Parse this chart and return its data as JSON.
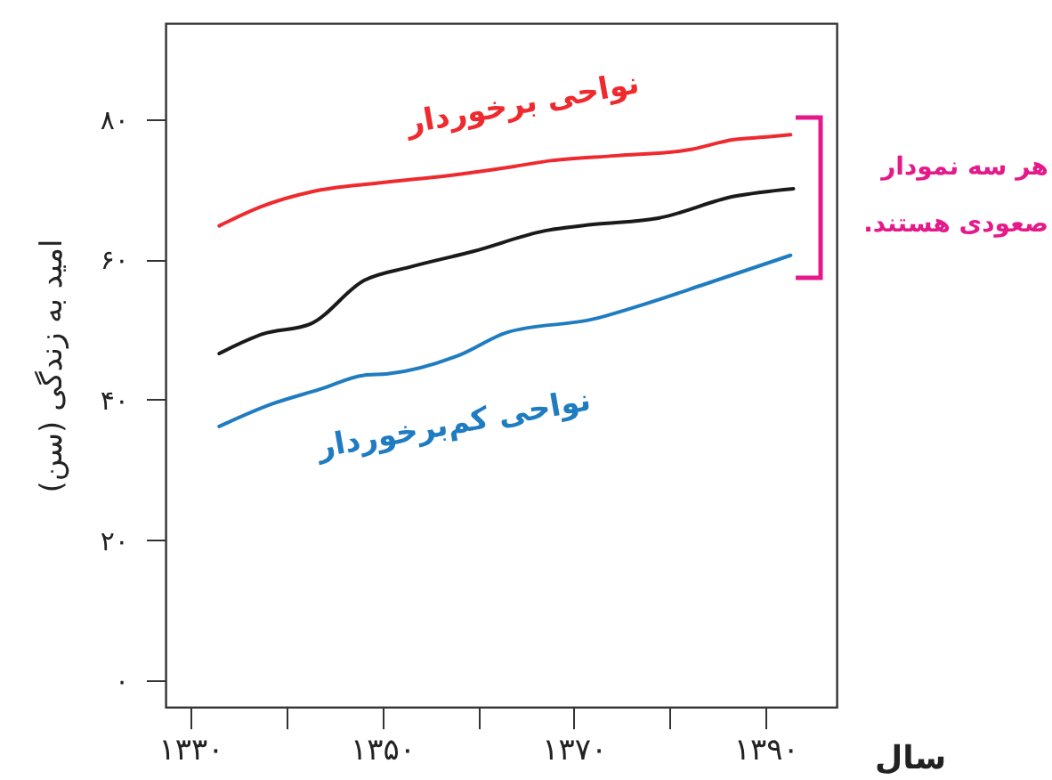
{
  "chart_data": {
    "type": "line",
    "xlabel": "سال",
    "ylabel": "امید به زندگی (سن)",
    "xlim": [
      1327.4,
      1397.4
    ],
    "ylim": [
      -3.8,
      93.7
    ],
    "xticks": [
      {
        "value": 1330,
        "label": "۱۳۳۰"
      },
      {
        "value": 1340,
        "label": null
      },
      {
        "value": 1350,
        "label": "۱۳۵۰"
      },
      {
        "value": 1360,
        "label": null
      },
      {
        "value": 1370,
        "label": "۱۳۷۰"
      },
      {
        "value": 1380,
        "label": null
      },
      {
        "value": 1390,
        "label": "۱۳۹۰"
      }
    ],
    "yticks": [
      {
        "value": 0,
        "label": "۰"
      },
      {
        "value": 20,
        "label": "۲۰"
      },
      {
        "value": 40,
        "label": "۴۰"
      },
      {
        "value": 60,
        "label": "۶۰"
      },
      {
        "value": 80,
        "label": "۸۰"
      }
    ],
    "grid": false,
    "line_style": "solid",
    "series": [
      {
        "name": "نواحی برخوردار",
        "color": "#ee2a2f",
        "x": [
          1333,
          1337.3,
          1342.8,
          1349.6,
          1357.1,
          1363.9,
          1367.6,
          1374.4,
          1381.8,
          1386.7,
          1390.4,
          1392.6
        ],
        "values": [
          64.8,
          67.5,
          69.7,
          70.9,
          72.0,
          73.3,
          74.1,
          74.8,
          75.6,
          77.1,
          77.5,
          77.8
        ]
      },
      {
        "color": "#1a1a1a",
        "x": [
          1333,
          1337.6,
          1342.5,
          1348.1,
          1352.8,
          1359.6,
          1367,
          1372,
          1378.8,
          1386.7,
          1392.9
        ],
        "values": [
          46.6,
          49.4,
          50.8,
          57.0,
          58.9,
          61.2,
          64.1,
          65.0,
          65.9,
          69.0,
          70.1
        ]
      },
      {
        "name": "نواحی کم‌برخوردار",
        "color": "#1f7cc1",
        "x": [
          1333,
          1338.5,
          1343.5,
          1348.1,
          1350.6,
          1358.1,
          1363,
          1372,
          1377.5,
          1383.7,
          1392.6
        ],
        "values": [
          36.2,
          39.4,
          41.5,
          43.5,
          43.7,
          46.4,
          49.6,
          51.5,
          53.7,
          56.5,
          60.6
        ]
      }
    ],
    "annotations": [
      "هر سه نمودار صعودی هستند."
    ]
  }
}
